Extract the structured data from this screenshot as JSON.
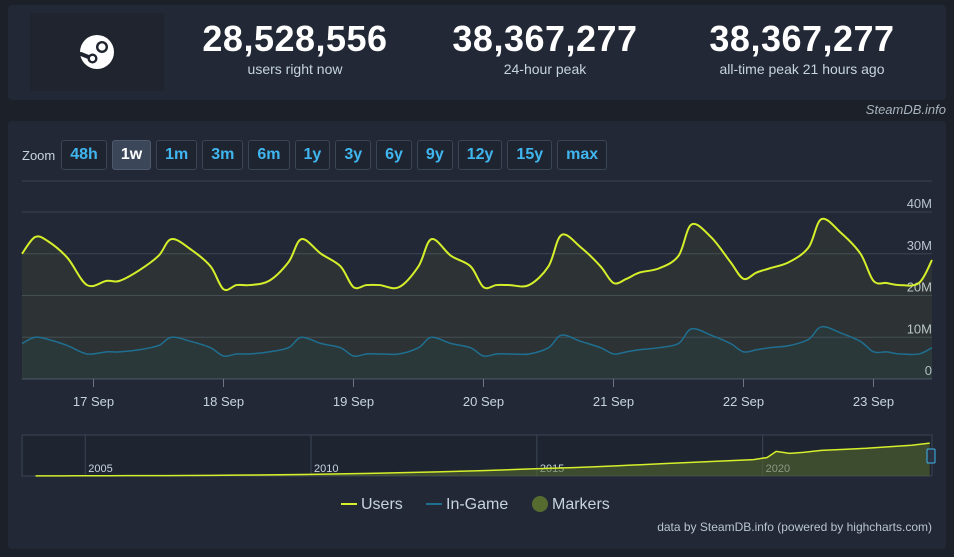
{
  "stats": [
    {
      "value": "28,528,556",
      "label": "users right now"
    },
    {
      "value": "38,367,277",
      "label": "24-hour peak"
    },
    {
      "value": "38,367,277",
      "label": "all-time peak 21 hours ago"
    }
  ],
  "credit_top": "SteamDB.info",
  "zoom": {
    "label": "Zoom",
    "buttons": [
      "48h",
      "1w",
      "1m",
      "3m",
      "6m",
      "1y",
      "3y",
      "6y",
      "9y",
      "12y",
      "15y",
      "max"
    ],
    "active": "1w"
  },
  "legend": [
    "Users",
    "In-Game",
    "Markers"
  ],
  "credit_bottom": "data by SteamDB.info (powered by highcharts.com)",
  "colors": {
    "users": "#d5ef2b",
    "ingame": "#1f6f91",
    "markers": "#556b2f",
    "background": "#1b2029",
    "panel": "#222835",
    "accent": "#40b6f0"
  },
  "icons": {
    "logo": "steam-logo-icon"
  },
  "chart_data": [
    {
      "type": "line",
      "x_axis": "date",
      "x_ticks": [
        "17 Sep",
        "18 Sep",
        "19 Sep",
        "20 Sep",
        "21 Sep",
        "22 Sep",
        "23 Sep"
      ],
      "y_ticks": [
        "0",
        "10M",
        "20M",
        "30M",
        "40M"
      ],
      "ylim": [
        0,
        40000000
      ],
      "grid": true,
      "legend_position": "bottom",
      "series": [
        {
          "name": "Users",
          "color": "#d5ef2b",
          "x_days": [
            16.45,
            16.55,
            16.65,
            16.8,
            16.95,
            17.1,
            17.2,
            17.35,
            17.5,
            17.6,
            17.75,
            17.9,
            18.0,
            18.1,
            18.2,
            18.35,
            18.5,
            18.6,
            18.75,
            18.9,
            19.0,
            19.1,
            19.2,
            19.35,
            19.5,
            19.6,
            19.75,
            19.9,
            20.0,
            20.1,
            20.2,
            20.35,
            20.5,
            20.6,
            20.75,
            20.9,
            21.0,
            21.1,
            21.2,
            21.35,
            21.5,
            21.6,
            21.75,
            21.9,
            22.0,
            22.1,
            22.2,
            22.35,
            22.5,
            22.6,
            22.75,
            22.9,
            23.0,
            23.1,
            23.2,
            23.35,
            23.45
          ],
          "values": [
            30000000,
            34000000,
            33000000,
            29000000,
            22500000,
            23500000,
            23500000,
            26000000,
            29500000,
            33500000,
            31000000,
            27000000,
            21500000,
            22500000,
            22500000,
            23500000,
            28000000,
            33500000,
            30000000,
            27000000,
            22000000,
            22500000,
            22500000,
            22000000,
            27000000,
            33500000,
            29500000,
            27000000,
            22000000,
            22500000,
            22500000,
            22500000,
            27000000,
            34500000,
            31500000,
            27000000,
            23000000,
            24000000,
            25500000,
            26500000,
            29500000,
            37000000,
            34000000,
            28000000,
            24000000,
            25500000,
            26500000,
            28000000,
            31500000,
            38300000,
            35000000,
            30000000,
            23500000,
            23000000,
            22500000,
            23000000,
            28500000
          ]
        },
        {
          "name": "In-Game",
          "color": "#1f6f91",
          "x_days": [
            16.45,
            16.55,
            16.65,
            16.8,
            16.95,
            17.1,
            17.2,
            17.35,
            17.5,
            17.6,
            17.75,
            17.9,
            18.0,
            18.1,
            18.2,
            18.35,
            18.5,
            18.6,
            18.75,
            18.9,
            19.0,
            19.1,
            19.2,
            19.35,
            19.5,
            19.6,
            19.75,
            19.9,
            20.0,
            20.1,
            20.2,
            20.35,
            20.5,
            20.6,
            20.75,
            20.9,
            21.0,
            21.1,
            21.2,
            21.35,
            21.5,
            21.6,
            21.75,
            21.9,
            22.0,
            22.1,
            22.2,
            22.35,
            22.5,
            22.6,
            22.75,
            22.9,
            23.0,
            23.1,
            23.2,
            23.35,
            23.45
          ],
          "values": [
            8500000,
            10000000,
            9500000,
            8000000,
            6000000,
            6500000,
            6500000,
            7000000,
            8000000,
            10000000,
            9000000,
            7500000,
            5500000,
            6000000,
            6000000,
            6500000,
            7500000,
            10000000,
            8500000,
            7500000,
            5500000,
            6000000,
            6000000,
            6000000,
            7500000,
            10000000,
            8500000,
            7500000,
            5500000,
            6000000,
            6000000,
            6000000,
            7500000,
            10500000,
            9000000,
            7500000,
            6000000,
            6500000,
            7000000,
            7500000,
            8500000,
            12000000,
            10500000,
            8500000,
            6500000,
            7000000,
            7500000,
            8000000,
            9500000,
            12500000,
            11000000,
            9000000,
            6500000,
            6500000,
            6000000,
            6000000,
            7500000
          ]
        }
      ]
    },
    {
      "type": "area",
      "name": "Markers",
      "x_ticks": [
        "2005",
        "2010",
        "2015",
        "2020"
      ],
      "x_years": [
        2003.9,
        2004.2,
        2004.5,
        2004.8,
        2005.0,
        2005.5,
        2006.2,
        2006.8,
        2007.2,
        2007.8,
        2008.3,
        2008.8,
        2009.3,
        2009.8,
        2010.3,
        2010.8,
        2011.3,
        2011.8,
        2012.3,
        2012.8,
        2013.3,
        2013.8,
        2014.3,
        2014.8,
        2015.3,
        2015.8,
        2016.3,
        2016.8,
        2017.3,
        2017.8,
        2018.3,
        2018.8,
        2019.3,
        2019.8,
        2020.1,
        2020.3,
        2020.6,
        2020.9,
        2021.3,
        2021.8,
        2022.3,
        2022.8,
        2023.3,
        2023.7
      ],
      "values": [
        0.1,
        0.1,
        0.15,
        0.2,
        0.25,
        0.3,
        0.35,
        0.4,
        0.5,
        0.6,
        0.8,
        1.0,
        1.2,
        1.5,
        1.8,
        2.2,
        2.6,
        3.0,
        3.5,
        4.0,
        4.6,
        5.2,
        6.0,
        6.8,
        7.5,
        8.2,
        9.0,
        10.0,
        11.0,
        12.0,
        13.0,
        14.0,
        15.0,
        16.0,
        18.0,
        24.0,
        22.0,
        23.0,
        25.0,
        26.0,
        27.0,
        28.5,
        30.0,
        32.0
      ]
    }
  ]
}
